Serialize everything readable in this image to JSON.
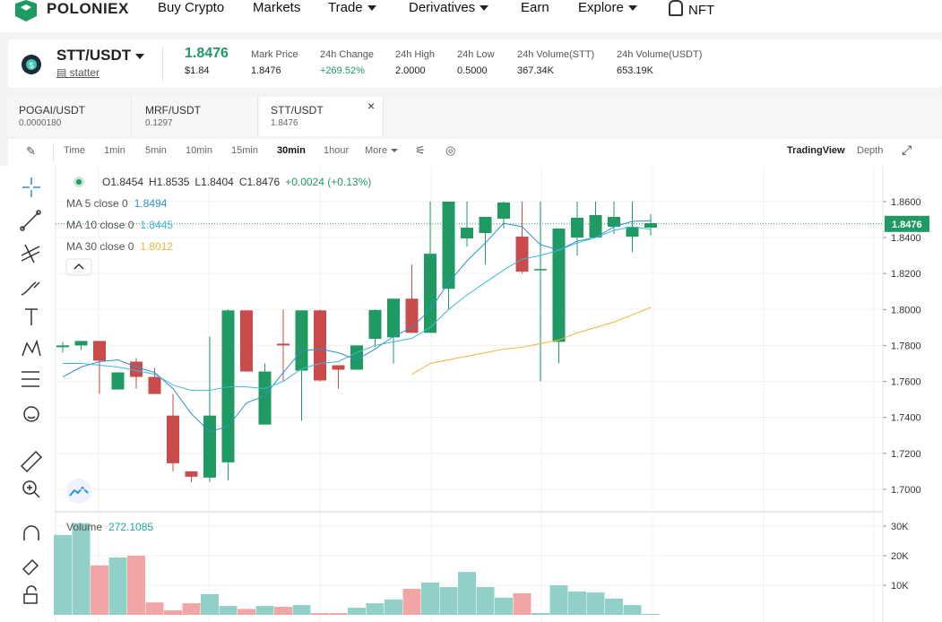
{
  "nav": {
    "brand": "POLONIEX",
    "items": [
      "Buy Crypto",
      "Markets",
      "Trade",
      "Derivatives",
      "Earn",
      "Explore",
      "NFT"
    ]
  },
  "ticker": {
    "pair": "STT/USDT",
    "name": "statter",
    "price": "1.8476",
    "price_usd": "$1.84",
    "stats": [
      {
        "label": "Mark Price",
        "value": "1.8476"
      },
      {
        "label": "24h Change",
        "value": "+269.52%"
      },
      {
        "label": "24h High",
        "value": "2.0000"
      },
      {
        "label": "24h Low",
        "value": "0.5000"
      },
      {
        "label": "24h Volume(STT)",
        "value": "367.34K"
      },
      {
        "label": "24h Volume(USDT)",
        "value": "653.19K"
      }
    ]
  },
  "tabs": [
    {
      "pair": "POGAI/USDT",
      "price": "0.0000180"
    },
    {
      "pair": "MRF/USDT",
      "price": "0.1297"
    },
    {
      "pair": "STT/USDT",
      "price": "1.8476"
    }
  ],
  "toolbar": {
    "intervals": [
      "Time",
      "1min",
      "5min",
      "10min",
      "15min",
      "30min",
      "1hour",
      "More"
    ],
    "views": [
      "TradingView",
      "Depth"
    ]
  },
  "chart_data": {
    "type": "candlestick",
    "legend_ohlc": [
      "O1.8454",
      "H1.8535",
      "L1.8404",
      "C1.8476",
      "+0.0024 (+0.13%)"
    ],
    "up_color": "#1f9a63",
    "down_color": "#c94b4b",
    "ylim": [
      1.6875,
      1.8799
    ],
    "yticks": [
      {
        "value": 1.86,
        "label": "1.8600"
      },
      {
        "value": 1.84,
        "label": "1.8400"
      },
      {
        "value": 1.82,
        "label": "1.8200"
      },
      {
        "value": 1.8,
        "label": "1.8000"
      },
      {
        "value": 1.78,
        "label": "1.7800"
      },
      {
        "value": 1.76,
        "label": "1.7600"
      },
      {
        "value": 1.74,
        "label": "1.7400"
      },
      {
        "value": 1.72,
        "label": "1.7200"
      },
      {
        "value": 1.7,
        "label": "1.7000"
      }
    ],
    "last_price": {
      "value": 1.8476,
      "label": "1.8476"
    },
    "grid": true,
    "candles": [
      {
        "open": 1.779,
        "high": 1.782,
        "low": 1.776,
        "close": 1.78
      },
      {
        "open": 1.78,
        "high": 1.7825,
        "low": 1.7775,
        "close": 1.7825
      },
      {
        "open": 1.7825,
        "high": 1.7825,
        "low": 1.753,
        "close": 1.7715
      },
      {
        "open": 1.7555,
        "high": 1.765,
        "low": 1.7555,
        "close": 1.765
      },
      {
        "open": 1.771,
        "high": 1.773,
        "low": 1.756,
        "close": 1.7625
      },
      {
        "open": 1.7625,
        "high": 1.7675,
        "low": 1.753,
        "close": 1.753
      },
      {
        "open": 1.741,
        "high": 1.753,
        "low": 1.71,
        "close": 1.7145
      },
      {
        "open": 1.71,
        "high": 1.71,
        "low": 1.704,
        "close": 1.707
      },
      {
        "open": 1.7065,
        "high": 1.785,
        "low": 1.704,
        "close": 1.741
      },
      {
        "open": 1.715,
        "high": 1.8,
        "low": 1.705,
        "close": 1.7995
      },
      {
        "open": 1.7995,
        "high": 1.7995,
        "low": 1.7655,
        "close": 1.7655
      },
      {
        "open": 1.736,
        "high": 1.77,
        "low": 1.736,
        "close": 1.7655
      },
      {
        "open": 1.781,
        "high": 1.8,
        "low": 1.76,
        "close": 1.78
      },
      {
        "open": 1.766,
        "high": 1.7995,
        "low": 1.738,
        "close": 1.7995
      },
      {
        "open": 1.7995,
        "high": 1.8,
        "low": 1.76,
        "close": 1.7605
      },
      {
        "open": 1.769,
        "high": 1.769,
        "low": 1.756,
        "close": 1.7665
      },
      {
        "open": 1.7665,
        "high": 1.78,
        "low": 1.7665,
        "close": 1.78
      },
      {
        "open": 1.7837,
        "high": 1.8,
        "low": 1.779,
        "close": 1.7997
      },
      {
        "open": 1.7845,
        "high": 1.806,
        "low": 1.77,
        "close": 1.806
      },
      {
        "open": 1.806,
        "high": 1.825,
        "low": 1.787,
        "close": 1.787
      },
      {
        "open": 1.787,
        "high": 1.86,
        "low": 1.787,
        "close": 1.831
      },
      {
        "open": 1.8115,
        "high": 1.86,
        "low": 1.8,
        "close": 1.86
      },
      {
        "open": 1.8395,
        "high": 1.86,
        "low": 1.835,
        "close": 1.8455
      },
      {
        "open": 1.8425,
        "high": 1.8515,
        "low": 1.825,
        "close": 1.8515
      },
      {
        "open": 1.8505,
        "high": 1.86,
        "low": 1.845,
        "close": 1.8595
      },
      {
        "open": 1.8405,
        "high": 1.86,
        "low": 1.82,
        "close": 1.821
      },
      {
        "open": 1.822,
        "high": 1.86,
        "low": 1.76,
        "close": 1.8225
      },
      {
        "open": 1.782,
        "high": 1.845,
        "low": 1.77,
        "close": 1.845
      },
      {
        "open": 1.84,
        "high": 1.86,
        "low": 1.83,
        "close": 1.851
      },
      {
        "open": 1.84,
        "high": 1.86,
        "low": 1.84,
        "close": 1.8525
      },
      {
        "open": 1.846,
        "high": 1.86,
        "low": 1.842,
        "close": 1.8515
      },
      {
        "open": 1.8405,
        "high": 1.86,
        "low": 1.832,
        "close": 1.846
      },
      {
        "open": 1.8455,
        "high": 1.853,
        "low": 1.841,
        "close": 1.848
      }
    ],
    "series": [
      {
        "name": "MA 5 close 0",
        "color": "#2f8fd0",
        "value_label": "1.8494",
        "values": [
          1.7625,
          1.768,
          1.771,
          1.772,
          1.768,
          1.765,
          1.756,
          1.742,
          1.732,
          1.735,
          1.748,
          1.752,
          1.765,
          1.777,
          1.778,
          1.776,
          1.772,
          1.778,
          1.785,
          1.79,
          1.8,
          1.815,
          1.827,
          1.837,
          1.848,
          1.846,
          1.836,
          1.833,
          1.838,
          1.84,
          1.846,
          1.849,
          1.8494
        ]
      },
      {
        "name": "MA 10 close 0",
        "color": "#3fb8d8",
        "value_label": "1.8445",
        "values": [
          1.77,
          1.77,
          1.769,
          1.768,
          1.766,
          1.764,
          1.758,
          1.755,
          1.755,
          1.757,
          1.757,
          1.756,
          1.76,
          1.767,
          1.77,
          1.771,
          1.776,
          1.78,
          1.782,
          1.784,
          1.79,
          1.8,
          1.808,
          1.815,
          1.822,
          1.828,
          1.83,
          1.833,
          1.837,
          1.84,
          1.844,
          1.846,
          1.8445
        ]
      },
      {
        "name": "MA 30 close 0",
        "color": "#f0b43a",
        "value_label": "1.8012",
        "values": [
          null,
          null,
          null,
          null,
          null,
          null,
          null,
          null,
          null,
          null,
          null,
          null,
          null,
          null,
          null,
          null,
          null,
          null,
          null,
          1.764,
          1.77,
          1.772,
          1.774,
          1.776,
          1.778,
          1.779,
          1.781,
          1.783,
          1.787,
          1.79,
          1.793,
          1.797,
          1.8012
        ]
      }
    ],
    "volume": {
      "name": "Volume",
      "value_label": "272.1085",
      "up_color": "#90d0c6",
      "down_color": "#f2a5a5",
      "ylim": [
        0,
        35000
      ],
      "yticks": [
        {
          "value": 10000,
          "label": "10K"
        },
        {
          "value": 20000,
          "label": "20K"
        },
        {
          "value": 30000,
          "label": "30K"
        }
      ],
      "values": [
        27000,
        31000,
        16700,
        19400,
        20000,
        4200,
        1500,
        3900,
        7000,
        3000,
        2000,
        3000,
        2700,
        3300,
        600,
        600,
        2400,
        3900,
        5200,
        8800,
        10900,
        9400,
        14500,
        9400,
        5800,
        7300,
        600,
        10000,
        7900,
        7600,
        5500,
        3300,
        300
      ]
    }
  }
}
